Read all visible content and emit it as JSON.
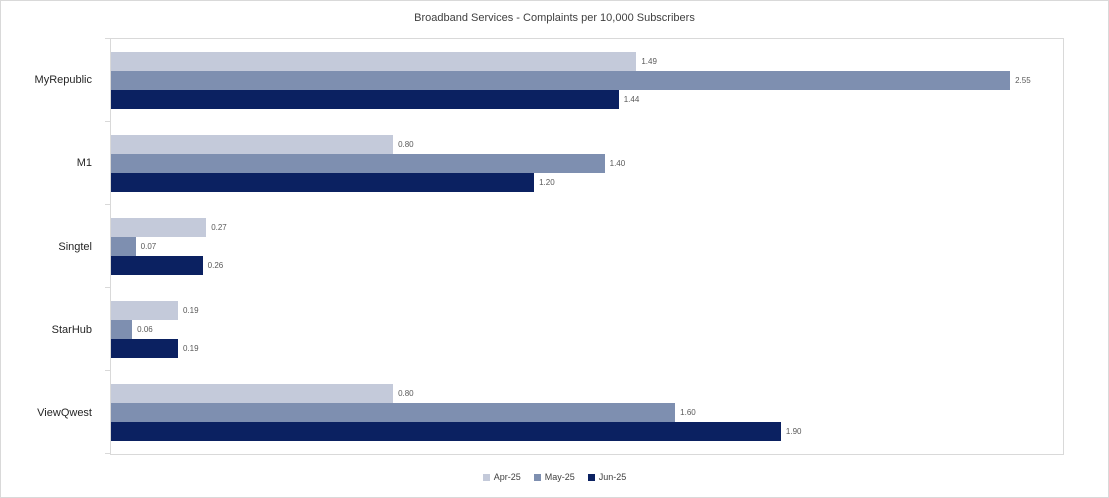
{
  "chart_data": {
    "type": "bar",
    "orientation": "horizontal",
    "title": "Broadband Services - Complaints per 10,000 Subscribers",
    "categories": [
      "MyRepublic",
      "M1",
      "Singtel",
      "StarHub",
      "ViewQwest"
    ],
    "series": [
      {
        "name": "Apr-25",
        "color": "#c4cada",
        "values": [
          1.49,
          0.8,
          0.27,
          0.19,
          0.8
        ]
      },
      {
        "name": "May-25",
        "color": "#7e8fb0",
        "values": [
          2.55,
          1.4,
          0.07,
          0.06,
          1.6
        ]
      },
      {
        "name": "Jun-25",
        "color": "#0b2161",
        "values": [
          1.44,
          1.2,
          0.26,
          0.19,
          1.9
        ]
      }
    ],
    "value_label_decimals": 2,
    "xlim": [
      0,
      2.7
    ],
    "x_axis_labels_visible": false,
    "grid": false,
    "legend_position": "bottom"
  },
  "colors": {
    "background": "#ffffff",
    "plot_border": "#d9d9d9",
    "title_text": "#404040",
    "category_text": "#262626",
    "value_label_text": "#595959"
  }
}
